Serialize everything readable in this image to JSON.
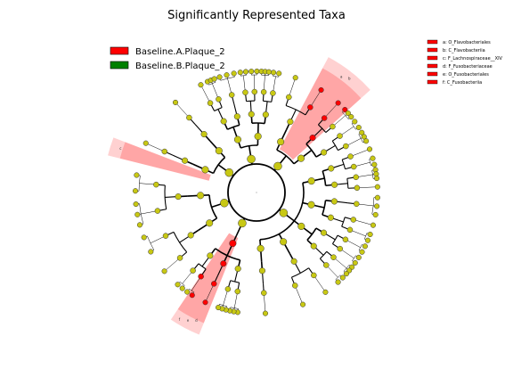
{
  "chart_data": {
    "type": "cladogram",
    "title": "Significantly Represented Taxa",
    "legend": [
      {
        "label": "Baseline.A.Plaque_2",
        "color": "#ff0000"
      },
      {
        "label": "Baseline.B.Plaque_2",
        "color": "#008000"
      }
    ],
    "clade_legend": [
      {
        "key": "a",
        "label": "a: O_Flavobacteriales",
        "color": "#ff0000"
      },
      {
        "key": "b",
        "label": "b: C_Flavobacteriia",
        "color": "#ff0000"
      },
      {
        "key": "c",
        "label": "c: F_Lachnospiraceae__XIV",
        "color": "#ff0000"
      },
      {
        "key": "d",
        "label": "d: F_Fusobacteriaceae",
        "color": "#ff0000"
      },
      {
        "key": "e",
        "label": "e: O_Fusobacteriales",
        "color": "#ff0000"
      },
      {
        "key": "f",
        "label": "f: C_Fusobacteriia",
        "color": "#ff0000"
      }
    ],
    "highlighted_sectors": [
      {
        "clade": "Flavobacteriia",
        "letters": [
          "a",
          "b"
        ],
        "color": "#ff0000",
        "start_deg": 298,
        "end_deg": 318
      },
      {
        "clade": "Lachnospiraceae_XIV",
        "letters": [
          "c"
        ],
        "color": "#ff0000",
        "start_deg": 194,
        "end_deg": 201
      },
      {
        "clade": "Fusobacteriia",
        "letters": [
          "d",
          "e",
          "f"
        ],
        "color": "#ff0000",
        "start_deg": 112,
        "end_deg": 124
      }
    ],
    "node_colors": {
      "default": "#c8c814",
      "group_a": "#ff0000",
      "group_b": "#008000"
    },
    "enriched_nodes": {
      "Baseline.A.Plaque_2": 18,
      "Baseline.B.Plaque_2": 1
    },
    "grid": false
  }
}
